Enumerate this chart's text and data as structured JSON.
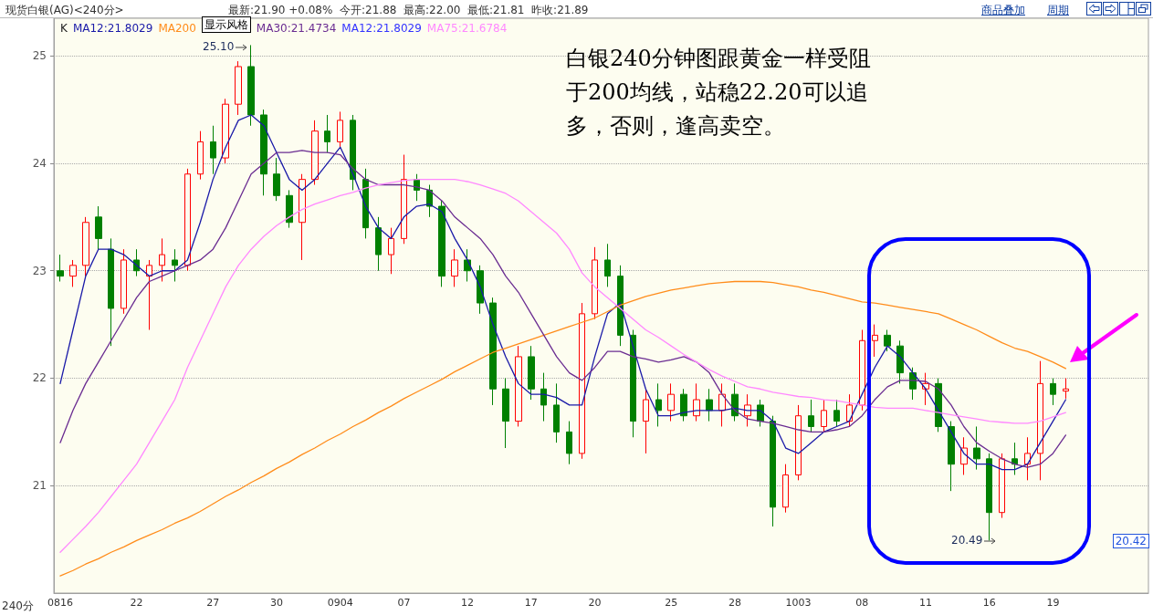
{
  "chart_data": {
    "type": "candlestick",
    "title": "现货白银(AG)<240分>",
    "subtitle": "最新:21.90 +0.08%  今开:21.88  最高:22.00  最低:21.81  昨收:21.89",
    "annotations": [
      "K",
      "MA12:21.8029",
      "显示风格",
      "商品叠加",
      "周期",
      "240分",
      "白银240分钟图跟黄金一样受阻于200均线，站稳22.20可以追多，否则，逢高卖空。",
      "25.10",
      "20.49",
      "20.42"
    ],
    "categories": [
      "0816",
      null,
      null,
      null,
      null,
      null,
      "22",
      null,
      null,
      null,
      null,
      null,
      "27",
      null,
      null,
      null,
      null,
      "30",
      null,
      null,
      null,
      null,
      "0904",
      null,
      null,
      null,
      null,
      "07",
      null,
      null,
      null,
      null,
      "12",
      null,
      null,
      null,
      null,
      "17",
      null,
      null,
      null,
      null,
      "20",
      null,
      null,
      null,
      null,
      null,
      "25",
      null,
      null,
      null,
      null,
      "28",
      null,
      null,
      null,
      null,
      "1003",
      null,
      null,
      null,
      null,
      "08",
      null,
      null,
      null,
      null,
      "11",
      null,
      null,
      null,
      null,
      "16",
      null,
      null,
      null,
      null,
      "19",
      null,
      null,
      null,
      null,
      null,
      null,
      null
    ],
    "ylim": [
      20,
      25.35
    ],
    "yticks": [
      21,
      22,
      23,
      24,
      25
    ],
    "grid": "y",
    "legend": "top left",
    "marker": "none",
    "line_style": "solid",
    "series": [
      {
        "type": "candlestick",
        "ohlc": [
          [
            23.0,
            23.15,
            22.9,
            22.95
          ],
          [
            22.95,
            23.1,
            22.85,
            23.05
          ],
          [
            23.05,
            23.5,
            22.95,
            23.45
          ],
          [
            23.5,
            23.6,
            23.2,
            23.3
          ],
          [
            23.2,
            23.3,
            22.3,
            22.65
          ],
          [
            22.65,
            23.2,
            22.6,
            23.1
          ],
          [
            23.1,
            23.2,
            22.95,
            23.0
          ],
          [
            22.95,
            23.1,
            22.45,
            23.05
          ],
          [
            23.05,
            23.3,
            22.9,
            23.15
          ],
          [
            23.1,
            23.2,
            22.9,
            23.05
          ],
          [
            23.05,
            23.95,
            23.0,
            23.9
          ],
          [
            23.9,
            24.3,
            23.85,
            24.2
          ],
          [
            24.2,
            24.35,
            23.9,
            24.05
          ],
          [
            24.05,
            24.6,
            24.0,
            24.55
          ],
          [
            24.55,
            24.95,
            24.45,
            24.9
          ],
          [
            24.9,
            25.1,
            24.35,
            24.45
          ],
          [
            24.45,
            24.5,
            23.7,
            23.9
          ],
          [
            23.9,
            24.05,
            23.65,
            23.7
          ],
          [
            23.7,
            23.75,
            23.4,
            23.45
          ],
          [
            23.45,
            23.9,
            23.1,
            23.85
          ],
          [
            23.85,
            24.4,
            23.8,
            24.3
          ],
          [
            24.3,
            24.45,
            24.1,
            24.2
          ],
          [
            24.2,
            24.48,
            24.15,
            24.4
          ],
          [
            24.4,
            24.45,
            23.75,
            23.85
          ],
          [
            23.85,
            23.95,
            23.3,
            23.4
          ],
          [
            23.4,
            23.5,
            23.0,
            23.15
          ],
          [
            23.15,
            23.4,
            22.97,
            23.3
          ],
          [
            23.3,
            24.08,
            23.25,
            23.85
          ],
          [
            23.85,
            23.9,
            23.65,
            23.75
          ],
          [
            23.75,
            23.8,
            23.5,
            23.6
          ],
          [
            23.6,
            23.65,
            22.85,
            22.95
          ],
          [
            22.95,
            23.2,
            22.85,
            23.1
          ],
          [
            23.1,
            23.2,
            22.9,
            23.0
          ],
          [
            23.0,
            23.05,
            22.6,
            22.7
          ],
          [
            22.7,
            22.75,
            21.75,
            21.9
          ],
          [
            21.9,
            22.0,
            21.35,
            21.6
          ],
          [
            21.6,
            22.3,
            21.55,
            22.2
          ],
          [
            22.2,
            22.3,
            21.8,
            21.9
          ],
          [
            21.9,
            22.05,
            21.6,
            21.75
          ],
          [
            21.75,
            21.95,
            21.4,
            21.5
          ],
          [
            21.5,
            21.6,
            21.2,
            21.3
          ],
          [
            21.3,
            22.7,
            21.25,
            22.6
          ],
          [
            22.6,
            23.22,
            22.55,
            23.1
          ],
          [
            23.1,
            23.25,
            22.85,
            22.95
          ],
          [
            22.95,
            23.05,
            22.3,
            22.4
          ],
          [
            22.4,
            22.45,
            21.45,
            21.6
          ],
          [
            21.6,
            21.9,
            21.3,
            21.8
          ],
          [
            21.8,
            21.95,
            21.55,
            21.7
          ],
          [
            21.7,
            21.95,
            21.6,
            21.85
          ],
          [
            21.85,
            21.9,
            21.6,
            21.65
          ],
          [
            21.65,
            21.95,
            21.6,
            21.8
          ],
          [
            21.8,
            21.9,
            21.6,
            21.7
          ],
          [
            21.7,
            21.95,
            21.55,
            21.85
          ],
          [
            21.85,
            21.95,
            21.6,
            21.65
          ],
          [
            21.65,
            21.85,
            21.55,
            21.75
          ],
          [
            21.75,
            21.8,
            21.55,
            21.6
          ],
          [
            21.6,
            21.65,
            20.62,
            20.8
          ],
          [
            20.8,
            21.2,
            20.75,
            21.1
          ],
          [
            21.1,
            21.75,
            21.05,
            21.65
          ],
          [
            21.65,
            21.8,
            21.5,
            21.55
          ],
          [
            21.55,
            21.8,
            21.5,
            21.7
          ],
          [
            21.7,
            21.8,
            21.55,
            21.6
          ],
          [
            21.6,
            21.85,
            21.55,
            21.75
          ],
          [
            21.75,
            22.45,
            21.7,
            22.35
          ],
          [
            22.35,
            22.5,
            22.2,
            22.4
          ],
          [
            22.4,
            22.45,
            22.25,
            22.3
          ],
          [
            22.3,
            22.35,
            21.95,
            22.05
          ],
          [
            22.05,
            22.1,
            21.8,
            21.9
          ],
          [
            21.9,
            22.05,
            21.75,
            21.95
          ],
          [
            21.95,
            22.0,
            21.5,
            21.55
          ],
          [
            21.55,
            21.6,
            20.95,
            21.2
          ],
          [
            21.2,
            21.45,
            21.1,
            21.35
          ],
          [
            21.35,
            21.55,
            21.15,
            21.25
          ],
          [
            21.25,
            21.3,
            20.49,
            20.75
          ],
          [
            20.75,
            21.3,
            20.7,
            21.25
          ],
          [
            21.25,
            21.4,
            21.1,
            21.2
          ],
          [
            21.2,
            21.45,
            21.05,
            21.3
          ],
          [
            21.3,
            22.16,
            21.05,
            21.95
          ],
          [
            21.95,
            22.0,
            21.75,
            21.85
          ],
          [
            21.88,
            22.0,
            21.81,
            21.9
          ],
          null,
          null,
          null,
          null,
          null,
          null
        ],
        "colors": [
          "#008000",
          "#ff0000",
          "#ff0000",
          "#008000",
          "#008000",
          "#ff0000",
          "#008000",
          "#ff0000",
          "#ff0000",
          "#008000",
          "#ff0000",
          "#ff0000",
          "#008000",
          "#ff0000",
          "#ff0000",
          "#008000",
          "#008000",
          "#008000",
          "#008000",
          "#ff0000",
          "#ff0000",
          "#008000",
          "#ff0000",
          "#008000",
          "#008000",
          "#008000",
          "#ff0000",
          "#ff0000",
          "#008000",
          "#008000",
          "#008000",
          "#ff0000",
          "#008000",
          "#008000",
          "#008000",
          "#008000",
          "#ff0000",
          "#008000",
          "#008000",
          "#008000",
          "#008000",
          "#ff0000",
          "#ff0000",
          "#008000",
          "#008000",
          "#008000",
          "#ff0000",
          "#008000",
          "#ff0000",
          "#008000",
          "#ff0000",
          "#008000",
          "#ff0000",
          "#008000",
          "#ff0000",
          "#008000",
          "#008000",
          "#ff0000",
          "#ff0000",
          "#008000",
          "#ff0000",
          "#008000",
          "#ff0000",
          "#ff0000",
          "#ff0000",
          "#008000",
          "#008000",
          "#008000",
          "#ff0000",
          "#008000",
          "#008000",
          "#ff0000",
          "#008000",
          "#008000",
          "#ff0000",
          "#008000",
          "#ff0000",
          "#ff0000",
          "#008000",
          "#ff0000",
          null,
          null,
          null,
          null,
          null,
          null
        ]
      },
      {
        "type": "line",
        "name": "MA12:21.8029",
        "color": "#1a1aa8",
        "values": [
          21.95,
          22.45,
          22.95,
          23.2,
          23.2,
          23.15,
          23.05,
          22.95,
          23.0,
          23.0,
          23.1,
          23.45,
          23.85,
          24.15,
          24.4,
          24.45,
          24.35,
          24.1,
          23.85,
          23.75,
          23.85,
          24.0,
          24.15,
          23.9,
          23.6,
          23.4,
          23.3,
          23.5,
          23.6,
          23.62,
          23.55,
          23.3,
          23.1,
          22.85,
          22.5,
          22.2,
          21.95,
          21.85,
          21.85,
          21.82,
          21.75,
          21.75,
          22.2,
          22.6,
          22.7,
          22.3,
          21.9,
          21.65,
          21.65,
          21.68,
          21.7,
          21.7,
          21.7,
          21.72,
          21.7,
          21.7,
          21.6,
          21.35,
          21.3,
          21.4,
          21.5,
          21.55,
          21.6,
          21.85,
          22.1,
          22.3,
          22.2,
          22.05,
          21.9,
          21.7,
          21.5,
          21.3,
          21.2,
          21.2,
          21.15,
          21.15,
          21.2,
          21.4,
          21.6,
          21.8,
          null,
          null,
          null,
          null,
          null,
          null
        ]
      },
      {
        "type": "line",
        "name": "MA200",
        "color": "#ff8c1a",
        "values": [
          20.16,
          20.21,
          20.27,
          20.32,
          20.38,
          20.43,
          20.49,
          20.54,
          20.59,
          20.65,
          20.7,
          20.76,
          20.83,
          20.9,
          20.96,
          21.03,
          21.09,
          21.16,
          21.22,
          21.29,
          21.35,
          21.42,
          21.48,
          21.55,
          21.61,
          21.68,
          21.74,
          21.81,
          21.87,
          21.93,
          21.99,
          22.06,
          22.12,
          22.18,
          22.24,
          22.28,
          22.32,
          22.36,
          22.4,
          22.44,
          22.48,
          22.52,
          22.56,
          22.62,
          22.68,
          22.72,
          22.76,
          22.79,
          22.82,
          22.84,
          22.86,
          22.88,
          22.89,
          22.9,
          22.9,
          22.9,
          22.89,
          22.87,
          22.85,
          22.82,
          22.8,
          22.77,
          22.74,
          22.71,
          22.7,
          22.68,
          22.66,
          22.64,
          22.62,
          22.6,
          22.55,
          22.5,
          22.45,
          22.39,
          22.33,
          22.28,
          22.25,
          22.2,
          22.15,
          22.09,
          null,
          null,
          null,
          null,
          null,
          null
        ]
      },
      {
        "type": "line",
        "name": "MA30:21.4734",
        "color": "#6a2c91",
        "values": [
          21.4,
          21.7,
          21.95,
          22.15,
          22.35,
          22.55,
          22.75,
          22.9,
          22.95,
          23.0,
          23.05,
          23.1,
          23.2,
          23.4,
          23.65,
          23.9,
          24.0,
          24.1,
          24.1,
          24.12,
          24.1,
          24.1,
          24.08,
          23.95,
          23.85,
          23.8,
          23.8,
          23.8,
          23.78,
          23.75,
          23.65,
          23.5,
          23.4,
          23.3,
          23.15,
          22.95,
          22.8,
          22.6,
          22.4,
          22.2,
          22.05,
          21.98,
          22.1,
          22.25,
          22.25,
          22.2,
          22.18,
          22.15,
          22.17,
          22.2,
          22.15,
          22.05,
          21.85,
          21.7,
          21.62,
          21.6,
          21.58,
          21.55,
          21.52,
          21.5,
          21.5,
          21.52,
          21.55,
          21.65,
          21.8,
          21.92,
          21.98,
          21.98,
          21.97,
          21.9,
          21.75,
          21.55,
          21.4,
          21.32,
          21.25,
          21.2,
          21.17,
          21.2,
          21.3,
          21.47,
          null,
          null,
          null,
          null,
          null,
          null
        ]
      },
      {
        "type": "line",
        "name": "MA75:21.6784",
        "color": "#ff88ff",
        "values": [
          20.38,
          20.5,
          20.62,
          20.75,
          20.9,
          21.05,
          21.2,
          21.4,
          21.6,
          21.8,
          22.1,
          22.35,
          22.6,
          22.85,
          23.05,
          23.2,
          23.32,
          23.42,
          23.5,
          23.57,
          23.62,
          23.66,
          23.7,
          23.73,
          23.77,
          23.8,
          23.82,
          23.84,
          23.85,
          23.85,
          23.85,
          23.85,
          23.83,
          23.8,
          23.76,
          23.72,
          23.65,
          23.55,
          23.45,
          23.35,
          23.2,
          22.98,
          22.85,
          22.75,
          22.65,
          22.55,
          22.45,
          22.38,
          22.3,
          22.22,
          22.15,
          22.08,
          22.02,
          21.97,
          21.92,
          21.9,
          21.87,
          21.85,
          21.83,
          21.82,
          21.8,
          21.79,
          21.77,
          21.75,
          21.73,
          21.72,
          21.72,
          21.72,
          21.7,
          21.68,
          21.66,
          21.64,
          21.62,
          21.6,
          21.59,
          21.58,
          21.58,
          21.6,
          21.64,
          21.68,
          null,
          null,
          null,
          null,
          null,
          null
        ]
      }
    ]
  }
}
